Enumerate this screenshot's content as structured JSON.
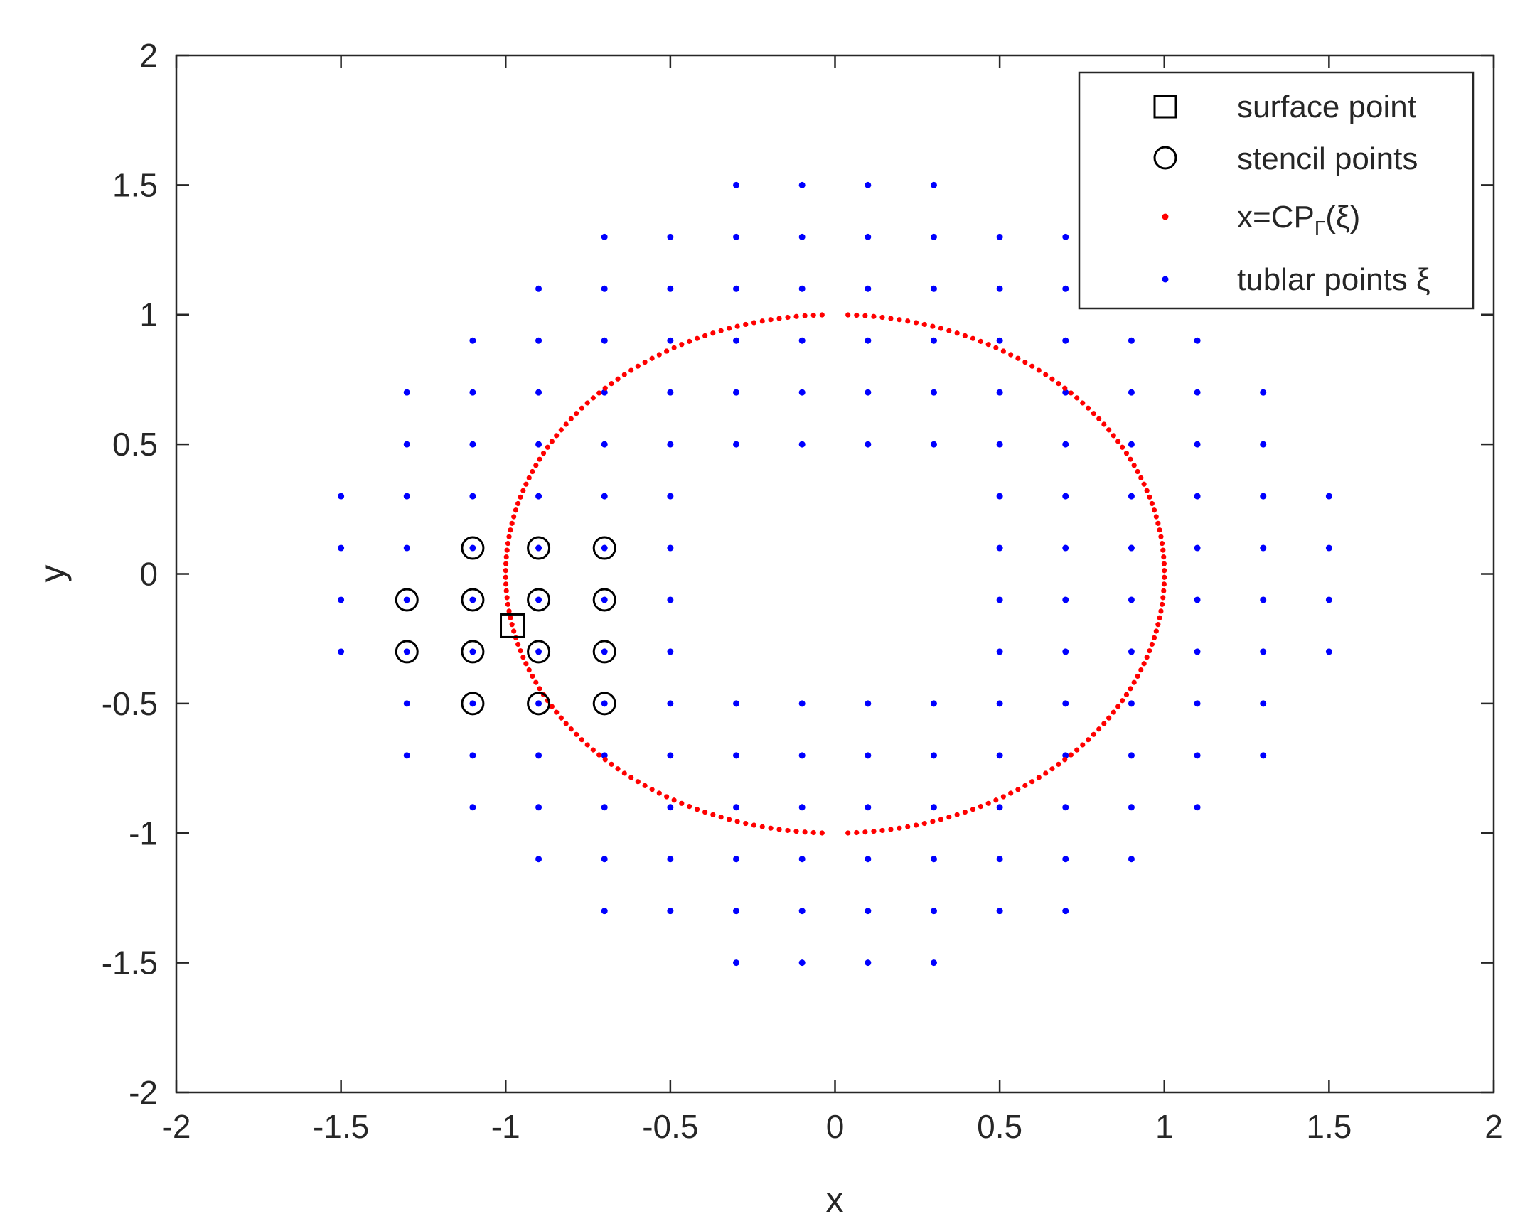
{
  "chart_data": {
    "type": "scatter",
    "title": "",
    "xlabel": "x",
    "ylabel": "y",
    "xlim": [
      -2,
      2
    ],
    "ylim": [
      -2,
      2
    ],
    "grid": false,
    "legend_position": "top-right",
    "xticks": [
      -2,
      -1.5,
      -1,
      -0.5,
      0,
      0.5,
      1,
      1.5,
      2
    ],
    "xtick_labels": [
      "-2",
      "-1.5",
      "-1",
      "-0.5",
      "0",
      "0.5",
      "1",
      "1.5",
      "2"
    ],
    "yticks": [
      -2,
      -1.5,
      -1,
      -0.5,
      0,
      0.5,
      1,
      1.5,
      2
    ],
    "ytick_labels": [
      "-2",
      "-1.5",
      "-1",
      "-0.5",
      "0",
      "0.5",
      "1",
      "1.5",
      "2"
    ],
    "legend": [
      {
        "key": "surface",
        "label": "surface point"
      },
      {
        "key": "stencil",
        "label": "stencil points"
      },
      {
        "key": "cp",
        "label_main": "x=CP",
        "label_sub": "Γ",
        "label_tail": "(ξ)"
      },
      {
        "key": "tubular",
        "label": "tublar points ξ"
      }
    ],
    "series": [
      {
        "key": "tubular",
        "color": "#0000ff",
        "marker": "dot",
        "rows": [
          {
            "y": 1.5,
            "x": [
              -0.3,
              -0.1,
              0.1,
              0.3
            ]
          },
          {
            "y": 1.3,
            "x": [
              -0.7,
              -0.5,
              -0.3,
              -0.1,
              0.1,
              0.3,
              0.5,
              0.7
            ]
          },
          {
            "y": 1.1,
            "x": [
              -0.9,
              -0.7,
              -0.5,
              -0.3,
              -0.1,
              0.1,
              0.3,
              0.5,
              0.7,
              0.9
            ]
          },
          {
            "y": 0.9,
            "x": [
              -1.1,
              -0.9,
              -0.7,
              -0.5,
              -0.3,
              -0.1,
              0.1,
              0.3,
              0.5,
              0.7,
              0.9,
              1.1
            ]
          },
          {
            "y": 0.7,
            "x": [
              -1.3,
              -1.1,
              -0.9,
              -0.7,
              -0.5,
              -0.3,
              -0.1,
              0.1,
              0.3,
              0.5,
              0.7,
              0.9,
              1.1,
              1.3
            ]
          },
          {
            "y": 0.5,
            "x": [
              -1.3,
              -1.1,
              -0.9,
              -0.7,
              -0.5,
              -0.3,
              -0.1,
              0.1,
              0.3,
              0.5,
              0.7,
              0.9,
              1.1,
              1.3
            ]
          },
          {
            "y": 0.3,
            "x": [
              -1.5,
              -1.3,
              -1.1,
              -0.9,
              -0.7,
              -0.5,
              0.5,
              0.7,
              0.9,
              1.1,
              1.3,
              1.5
            ]
          },
          {
            "y": 0.1,
            "x": [
              -1.5,
              -1.3,
              -1.1,
              -0.9,
              -0.7,
              -0.5,
              0.5,
              0.7,
              0.9,
              1.1,
              1.3,
              1.5
            ]
          },
          {
            "y": -0.1,
            "x": [
              -1.5,
              -1.3,
              -1.1,
              -0.9,
              -0.7,
              -0.5,
              0.5,
              0.7,
              0.9,
              1.1,
              1.3,
              1.5
            ]
          },
          {
            "y": -0.3,
            "x": [
              -1.5,
              -1.3,
              -1.1,
              -0.9,
              -0.7,
              -0.5,
              0.5,
              0.7,
              0.9,
              1.1,
              1.3,
              1.5
            ]
          },
          {
            "y": -0.5,
            "x": [
              -1.3,
              -1.1,
              -0.9,
              -0.7,
              -0.5,
              -0.3,
              -0.1,
              0.1,
              0.3,
              0.5,
              0.7,
              0.9,
              1.1,
              1.3
            ]
          },
          {
            "y": -0.7,
            "x": [
              -1.3,
              -1.1,
              -0.9,
              -0.7,
              -0.5,
              -0.3,
              -0.1,
              0.1,
              0.3,
              0.5,
              0.7,
              0.9,
              1.1,
              1.3
            ]
          },
          {
            "y": -0.9,
            "x": [
              -1.1,
              -0.9,
              -0.7,
              -0.5,
              -0.3,
              -0.1,
              0.1,
              0.3,
              0.5,
              0.7,
              0.9,
              1.1
            ]
          },
          {
            "y": -1.1,
            "x": [
              -0.9,
              -0.7,
              -0.5,
              -0.3,
              -0.1,
              0.1,
              0.3,
              0.5,
              0.7,
              0.9
            ]
          },
          {
            "y": -1.3,
            "x": [
              -0.7,
              -0.5,
              -0.3,
              -0.1,
              0.1,
              0.3,
              0.5,
              0.7
            ]
          },
          {
            "y": -1.5,
            "x": [
              -0.3,
              -0.1,
              0.1,
              0.3
            ]
          }
        ]
      },
      {
        "key": "cp",
        "color": "#ff0000",
        "marker": "dot",
        "shape": "ellipse",
        "center": [
          0,
          0
        ],
        "semi_axes": [
          1,
          1
        ]
      },
      {
        "key": "stencil",
        "color": "#000000",
        "marker": "circle",
        "points": [
          [
            -1.1,
            0.1
          ],
          [
            -0.9,
            0.1
          ],
          [
            -0.7,
            0.1
          ],
          [
            -1.3,
            -0.1
          ],
          [
            -1.1,
            -0.1
          ],
          [
            -0.9,
            -0.1
          ],
          [
            -0.7,
            -0.1
          ],
          [
            -1.3,
            -0.3
          ],
          [
            -1.1,
            -0.3
          ],
          [
            -0.9,
            -0.3
          ],
          [
            -0.7,
            -0.3
          ],
          [
            -1.1,
            -0.5
          ],
          [
            -0.9,
            -0.5
          ],
          [
            -0.7,
            -0.5
          ]
        ]
      },
      {
        "key": "surface",
        "color": "#000000",
        "marker": "square",
        "points": [
          [
            -0.98,
            -0.2
          ]
        ]
      }
    ]
  }
}
